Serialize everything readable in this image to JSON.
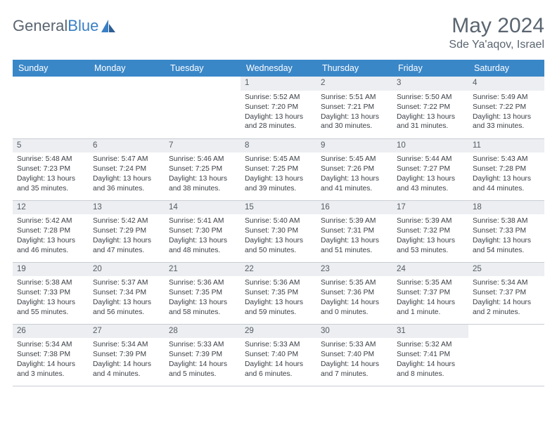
{
  "logo": {
    "part1": "General",
    "part2": "Blue"
  },
  "title": "May 2024",
  "location": "Sde Ya'aqov, Israel",
  "colors": {
    "header_bg": "#3a87c8",
    "header_text": "#ffffff",
    "daynum_bg": "#eceef1",
    "border": "#c8cdd3",
    "title_color": "#5a6570",
    "logo_blue": "#3a7fc4"
  },
  "weekday_headers": [
    "Sunday",
    "Monday",
    "Tuesday",
    "Wednesday",
    "Thursday",
    "Friday",
    "Saturday"
  ],
  "weeks": [
    [
      {
        "empty": true
      },
      {
        "empty": true
      },
      {
        "empty": true
      },
      {
        "num": "1",
        "sunrise": "Sunrise: 5:52 AM",
        "sunset": "Sunset: 7:20 PM",
        "daylight1": "Daylight: 13 hours",
        "daylight2": "and 28 minutes."
      },
      {
        "num": "2",
        "sunrise": "Sunrise: 5:51 AM",
        "sunset": "Sunset: 7:21 PM",
        "daylight1": "Daylight: 13 hours",
        "daylight2": "and 30 minutes."
      },
      {
        "num": "3",
        "sunrise": "Sunrise: 5:50 AM",
        "sunset": "Sunset: 7:22 PM",
        "daylight1": "Daylight: 13 hours",
        "daylight2": "and 31 minutes."
      },
      {
        "num": "4",
        "sunrise": "Sunrise: 5:49 AM",
        "sunset": "Sunset: 7:22 PM",
        "daylight1": "Daylight: 13 hours",
        "daylight2": "and 33 minutes."
      }
    ],
    [
      {
        "num": "5",
        "sunrise": "Sunrise: 5:48 AM",
        "sunset": "Sunset: 7:23 PM",
        "daylight1": "Daylight: 13 hours",
        "daylight2": "and 35 minutes."
      },
      {
        "num": "6",
        "sunrise": "Sunrise: 5:47 AM",
        "sunset": "Sunset: 7:24 PM",
        "daylight1": "Daylight: 13 hours",
        "daylight2": "and 36 minutes."
      },
      {
        "num": "7",
        "sunrise": "Sunrise: 5:46 AM",
        "sunset": "Sunset: 7:25 PM",
        "daylight1": "Daylight: 13 hours",
        "daylight2": "and 38 minutes."
      },
      {
        "num": "8",
        "sunrise": "Sunrise: 5:45 AM",
        "sunset": "Sunset: 7:25 PM",
        "daylight1": "Daylight: 13 hours",
        "daylight2": "and 39 minutes."
      },
      {
        "num": "9",
        "sunrise": "Sunrise: 5:45 AM",
        "sunset": "Sunset: 7:26 PM",
        "daylight1": "Daylight: 13 hours",
        "daylight2": "and 41 minutes."
      },
      {
        "num": "10",
        "sunrise": "Sunrise: 5:44 AM",
        "sunset": "Sunset: 7:27 PM",
        "daylight1": "Daylight: 13 hours",
        "daylight2": "and 43 minutes."
      },
      {
        "num": "11",
        "sunrise": "Sunrise: 5:43 AM",
        "sunset": "Sunset: 7:28 PM",
        "daylight1": "Daylight: 13 hours",
        "daylight2": "and 44 minutes."
      }
    ],
    [
      {
        "num": "12",
        "sunrise": "Sunrise: 5:42 AM",
        "sunset": "Sunset: 7:28 PM",
        "daylight1": "Daylight: 13 hours",
        "daylight2": "and 46 minutes."
      },
      {
        "num": "13",
        "sunrise": "Sunrise: 5:42 AM",
        "sunset": "Sunset: 7:29 PM",
        "daylight1": "Daylight: 13 hours",
        "daylight2": "and 47 minutes."
      },
      {
        "num": "14",
        "sunrise": "Sunrise: 5:41 AM",
        "sunset": "Sunset: 7:30 PM",
        "daylight1": "Daylight: 13 hours",
        "daylight2": "and 48 minutes."
      },
      {
        "num": "15",
        "sunrise": "Sunrise: 5:40 AM",
        "sunset": "Sunset: 7:30 PM",
        "daylight1": "Daylight: 13 hours",
        "daylight2": "and 50 minutes."
      },
      {
        "num": "16",
        "sunrise": "Sunrise: 5:39 AM",
        "sunset": "Sunset: 7:31 PM",
        "daylight1": "Daylight: 13 hours",
        "daylight2": "and 51 minutes."
      },
      {
        "num": "17",
        "sunrise": "Sunrise: 5:39 AM",
        "sunset": "Sunset: 7:32 PM",
        "daylight1": "Daylight: 13 hours",
        "daylight2": "and 53 minutes."
      },
      {
        "num": "18",
        "sunrise": "Sunrise: 5:38 AM",
        "sunset": "Sunset: 7:33 PM",
        "daylight1": "Daylight: 13 hours",
        "daylight2": "and 54 minutes."
      }
    ],
    [
      {
        "num": "19",
        "sunrise": "Sunrise: 5:38 AM",
        "sunset": "Sunset: 7:33 PM",
        "daylight1": "Daylight: 13 hours",
        "daylight2": "and 55 minutes."
      },
      {
        "num": "20",
        "sunrise": "Sunrise: 5:37 AM",
        "sunset": "Sunset: 7:34 PM",
        "daylight1": "Daylight: 13 hours",
        "daylight2": "and 56 minutes."
      },
      {
        "num": "21",
        "sunrise": "Sunrise: 5:36 AM",
        "sunset": "Sunset: 7:35 PM",
        "daylight1": "Daylight: 13 hours",
        "daylight2": "and 58 minutes."
      },
      {
        "num": "22",
        "sunrise": "Sunrise: 5:36 AM",
        "sunset": "Sunset: 7:35 PM",
        "daylight1": "Daylight: 13 hours",
        "daylight2": "and 59 minutes."
      },
      {
        "num": "23",
        "sunrise": "Sunrise: 5:35 AM",
        "sunset": "Sunset: 7:36 PM",
        "daylight1": "Daylight: 14 hours",
        "daylight2": "and 0 minutes."
      },
      {
        "num": "24",
        "sunrise": "Sunrise: 5:35 AM",
        "sunset": "Sunset: 7:37 PM",
        "daylight1": "Daylight: 14 hours",
        "daylight2": "and 1 minute."
      },
      {
        "num": "25",
        "sunrise": "Sunrise: 5:34 AM",
        "sunset": "Sunset: 7:37 PM",
        "daylight1": "Daylight: 14 hours",
        "daylight2": "and 2 minutes."
      }
    ],
    [
      {
        "num": "26",
        "sunrise": "Sunrise: 5:34 AM",
        "sunset": "Sunset: 7:38 PM",
        "daylight1": "Daylight: 14 hours",
        "daylight2": "and 3 minutes."
      },
      {
        "num": "27",
        "sunrise": "Sunrise: 5:34 AM",
        "sunset": "Sunset: 7:39 PM",
        "daylight1": "Daylight: 14 hours",
        "daylight2": "and 4 minutes."
      },
      {
        "num": "28",
        "sunrise": "Sunrise: 5:33 AM",
        "sunset": "Sunset: 7:39 PM",
        "daylight1": "Daylight: 14 hours",
        "daylight2": "and 5 minutes."
      },
      {
        "num": "29",
        "sunrise": "Sunrise: 5:33 AM",
        "sunset": "Sunset: 7:40 PM",
        "daylight1": "Daylight: 14 hours",
        "daylight2": "and 6 minutes."
      },
      {
        "num": "30",
        "sunrise": "Sunrise: 5:33 AM",
        "sunset": "Sunset: 7:40 PM",
        "daylight1": "Daylight: 14 hours",
        "daylight2": "and 7 minutes."
      },
      {
        "num": "31",
        "sunrise": "Sunrise: 5:32 AM",
        "sunset": "Sunset: 7:41 PM",
        "daylight1": "Daylight: 14 hours",
        "daylight2": "and 8 minutes."
      },
      {
        "empty": true
      }
    ]
  ]
}
